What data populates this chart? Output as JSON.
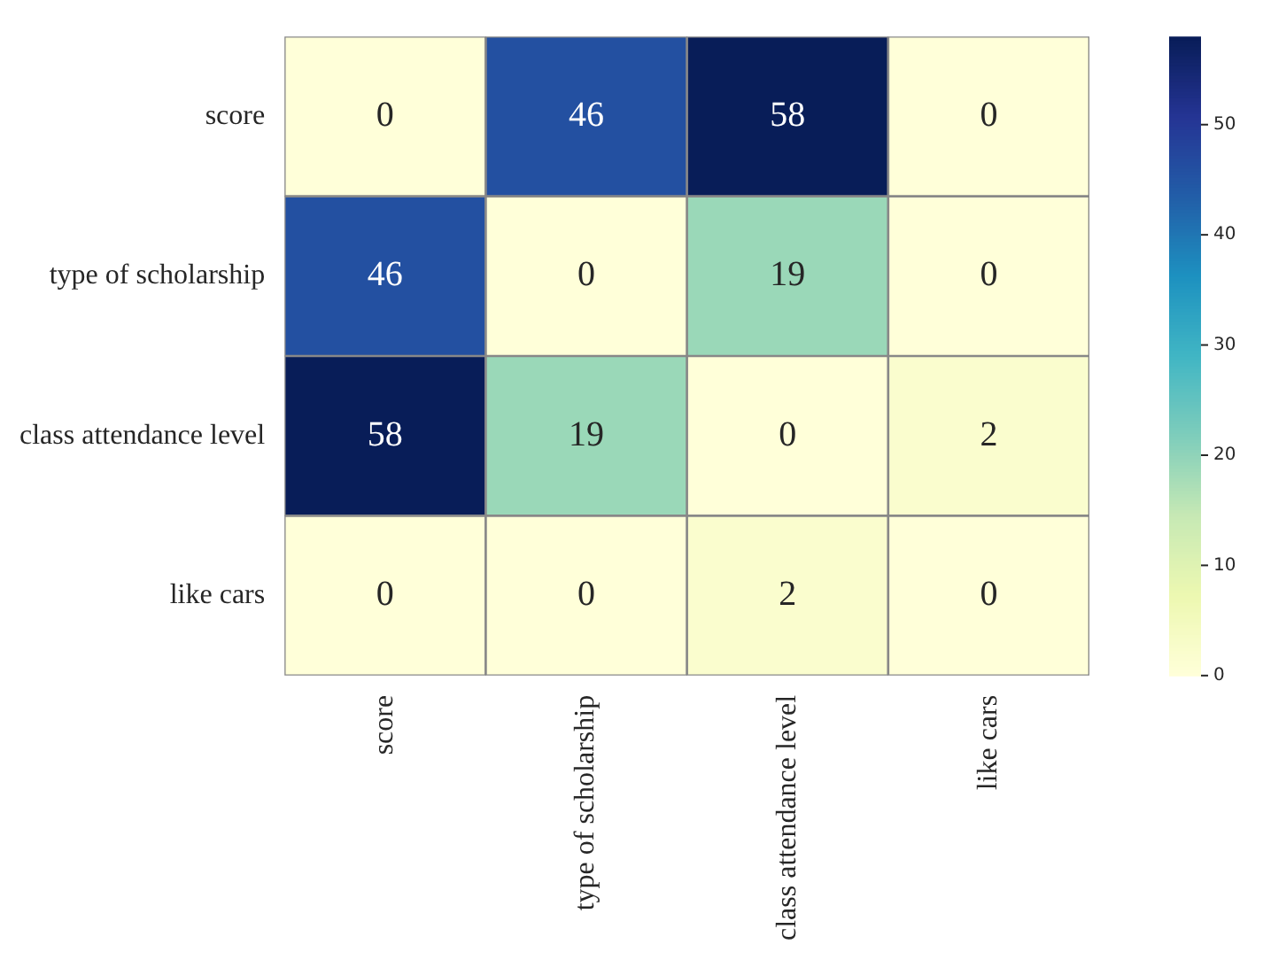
{
  "chart_data": {
    "type": "heatmap",
    "categories": [
      "score",
      "type of scholarship",
      "class attendance level",
      "like cars"
    ],
    "y_categories": [
      "score",
      "type of scholarship",
      "class attendance level",
      "like cars"
    ],
    "cells": [
      [
        0,
        46,
        58,
        0
      ],
      [
        46,
        0,
        19,
        0
      ],
      [
        58,
        19,
        0,
        2
      ],
      [
        0,
        0,
        2,
        0
      ]
    ],
    "data_labels": true,
    "clim": [
      0,
      58
    ],
    "cticks": [
      0,
      10,
      20,
      30,
      40,
      50
    ]
  }
}
